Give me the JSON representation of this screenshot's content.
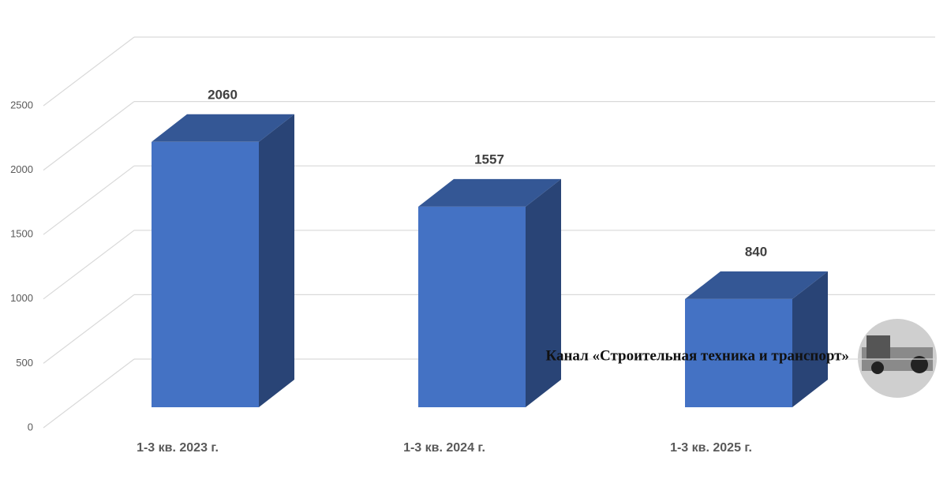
{
  "chart_data": {
    "type": "bar3d",
    "categories": [
      "1-3 кв. 2023 г.",
      "1-3 кв. 2024 г.",
      "1-3 кв. 2025 г."
    ],
    "values": [
      2060,
      1557,
      840
    ],
    "color": "#4472c4",
    "ylim": [
      0,
      2500
    ],
    "yticks": [
      0,
      500,
      1000,
      1500,
      2000,
      2500
    ],
    "grid": true
  },
  "watermark": "Канал «Строительная техника и транспорт»"
}
